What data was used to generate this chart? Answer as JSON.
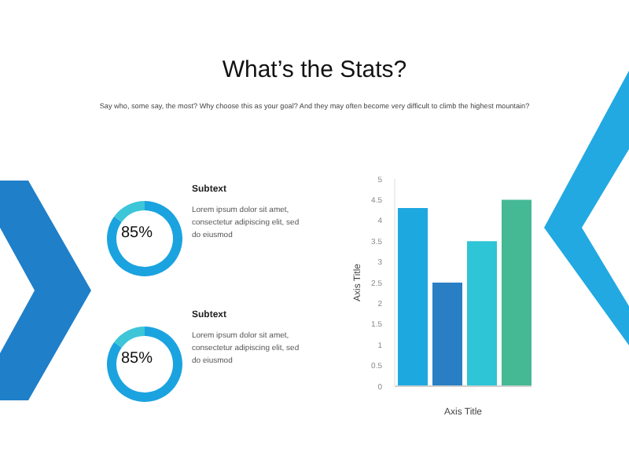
{
  "chart_data": [
    {
      "type": "other",
      "title": "What’s the Stats?",
      "subtitle": "Say who, some say, the most? Why choose this as your goal? And they may often become very difficult to climb the highest mountain?"
    },
    {
      "type": "donut",
      "title": "Subtext",
      "categories": [
        null,
        null
      ],
      "values": [
        85,
        15
      ],
      "colors": [
        "#1ba3e0",
        "#3cc6d8"
      ],
      "value_labels": [
        "85%",
        null
      ],
      "annotations": [
        "Lorem ipsum dolor sit amet, consectetur adipiscing elit, sed do eiusmod"
      ]
    },
    {
      "type": "donut",
      "title": "Subtext",
      "categories": [
        null,
        null
      ],
      "values": [
        85,
        15
      ],
      "colors": [
        "#1ba3e0",
        "#3cc6d8"
      ],
      "value_labels": [
        "85%",
        null
      ],
      "annotations": [
        "Lorem ipsum dolor sit amet, consectetur adipiscing elit, sed do eiusmod"
      ]
    },
    {
      "type": "bar",
      "categories": [
        null
      ],
      "xlabel": "Axis Title",
      "ylabel": "Axis Title",
      "ylim": [
        0,
        5
      ],
      "yticks": [
        0,
        0.5,
        1,
        1.5,
        2,
        2.5,
        3,
        3.5,
        4,
        4.5,
        5
      ],
      "grid": false,
      "series": [
        {
          "color": "#1ea8e0",
          "values": [
            4.3
          ]
        },
        {
          "color": "#2a7fc4",
          "values": [
            2.5
          ]
        },
        {
          "color": "#2ec5d6",
          "values": [
            3.5
          ]
        },
        {
          "color": "#45b894",
          "values": [
            4.5
          ]
        }
      ]
    }
  ]
}
